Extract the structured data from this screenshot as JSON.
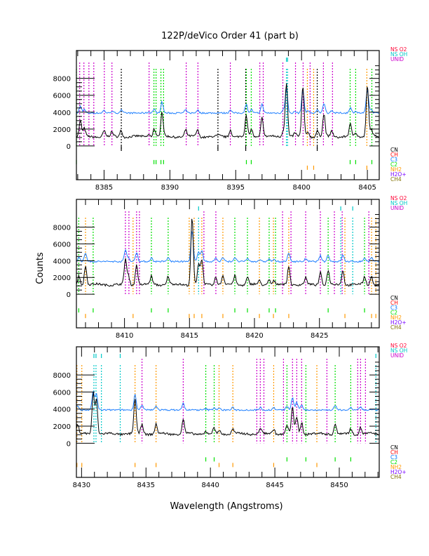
{
  "chart_data": {
    "type": "line",
    "title": "122P/deVico Order 41 (part b)",
    "xlabel": "Wavelength (Angstroms)",
    "ylabel": "Counts",
    "grid": false,
    "legend_top": [
      {
        "label": "NS O2",
        "color": "#ff0033"
      },
      {
        "label": "NS OH",
        "color": "#00c8c8"
      },
      {
        "label": "UNID",
        "color": "#cc00cc"
      }
    ],
    "legend_bottom": [
      {
        "label": "CN",
        "color": "#000000"
      },
      {
        "label": "CH",
        "color": "#ff0000"
      },
      {
        "label": "C3",
        "color": "#0078ff"
      },
      {
        "label": "C2",
        "color": "#00e000"
      },
      {
        "label": "NH2",
        "color": "#ff9900"
      },
      {
        "label": "H2O+",
        "color": "#7700ff"
      },
      {
        "label": "CH4",
        "color": "#807000"
      }
    ],
    "series_colors": {
      "spectrum": "#000000",
      "offset_spectrum": "#1e7fff"
    },
    "marker_colors": {
      "UNID": "#cc00cc",
      "C2": "#00e000",
      "NH2": "#ff9900",
      "CN": "#000000",
      "NS OH": "#00c8c8"
    },
    "panels": [
      {
        "xlim": [
          8382.9,
          8405.9
        ],
        "ylim": [
          -4000,
          11300
        ],
        "xticks": [
          8385,
          8390,
          8395,
          8400,
          8405
        ],
        "yticks": [
          0,
          2000,
          4000,
          6000,
          8000
        ],
        "baseline": 1100,
        "offset_baseline": 3900,
        "peaks": [
          [
            8383.2,
            2900
          ],
          [
            8383.5,
            2000
          ],
          [
            8385.0,
            1800
          ],
          [
            8385.6,
            1600
          ],
          [
            8386.3,
            1900
          ],
          [
            8388.4,
            1400
          ],
          [
            8388.8,
            2100
          ],
          [
            8389.4,
            4000
          ],
          [
            8391.2,
            1900
          ],
          [
            8392.1,
            1900
          ],
          [
            8393.7,
            1200
          ],
          [
            8394.6,
            2000
          ],
          [
            8395.8,
            3500
          ],
          [
            8396.2,
            2000
          ],
          [
            8397.0,
            3400
          ],
          [
            8398.6,
            1800
          ],
          [
            8398.85,
            7500
          ],
          [
            8399.5,
            1500
          ],
          [
            8400.1,
            7000
          ],
          [
            8400.5,
            1700
          ],
          [
            8401.2,
            1800
          ],
          [
            8401.7,
            3700
          ],
          [
            8402.3,
            1800
          ],
          [
            8403.7,
            2500
          ],
          [
            8404.1,
            1600
          ],
          [
            8405.0,
            7200
          ],
          [
            8405.3,
            2000
          ]
        ],
        "markers": [
          {
            "x": 8382.9,
            "species": "C2"
          },
          {
            "x": 8383.15,
            "species": "UNID"
          },
          {
            "x": 8383.47,
            "species": "UNID"
          },
          {
            "x": 8383.85,
            "species": "UNID"
          },
          {
            "x": 8384.22,
            "species": "UNID"
          },
          {
            "x": 8385.02,
            "species": "UNID"
          },
          {
            "x": 8385.6,
            "species": "UNID"
          },
          {
            "x": 8386.31,
            "species": "CN"
          },
          {
            "x": 8388.42,
            "species": "UNID"
          },
          {
            "x": 8388.79,
            "species": "C2"
          },
          {
            "x": 8388.95,
            "species": "C2"
          },
          {
            "x": 8389.32,
            "species": "C2"
          },
          {
            "x": 8389.52,
            "species": "C2"
          },
          {
            "x": 8391.24,
            "species": "UNID"
          },
          {
            "x": 8392.13,
            "species": "UNID"
          },
          {
            "x": 8393.65,
            "species": "CN"
          },
          {
            "x": 8394.59,
            "species": "UNID"
          },
          {
            "x": 8395.76,
            "species": "CN"
          },
          {
            "x": 8395.81,
            "species": "C2"
          },
          {
            "x": 8396.18,
            "species": "C2"
          },
          {
            "x": 8396.83,
            "species": "UNID"
          },
          {
            "x": 8397.09,
            "species": "UNID"
          },
          {
            "x": 8398.58,
            "species": "UNID"
          },
          {
            "x": 8398.85,
            "species": "NS OH"
          },
          {
            "x": 8398.94,
            "species": "NS OH"
          },
          {
            "x": 8399.54,
            "species": "UNID"
          },
          {
            "x": 8400.12,
            "species": "UNID"
          },
          {
            "x": 8400.44,
            "species": "NH2"
          },
          {
            "x": 8400.65,
            "species": "UNID"
          },
          {
            "x": 8400.92,
            "species": "NH2"
          },
          {
            "x": 8401.19,
            "species": "CN"
          },
          {
            "x": 8401.66,
            "species": "UNID"
          },
          {
            "x": 8402.35,
            "species": "UNID"
          },
          {
            "x": 8403.69,
            "species": "C2"
          },
          {
            "x": 8404.11,
            "species": "C2"
          },
          {
            "x": 8404.96,
            "species": "NH2"
          },
          {
            "x": 8405.34,
            "species": "C2"
          }
        ]
      },
      {
        "xlim": [
          8406.3,
          8429.6
        ],
        "ylim": [
          -4000,
          11300
        ],
        "xticks": [
          8410,
          8415,
          8420,
          8425
        ],
        "yticks": [
          0,
          2000,
          4000,
          6000,
          8000
        ],
        "baseline": 1150,
        "offset_baseline": 3900,
        "peaks": [
          [
            8406.5,
            2250
          ],
          [
            8407.0,
            3400
          ],
          [
            8410.07,
            4200
          ],
          [
            8410.3,
            2200
          ],
          [
            8410.93,
            3600
          ],
          [
            8412.07,
            2100
          ],
          [
            8413.36,
            2150
          ],
          [
            8415.2,
            9200
          ],
          [
            8415.7,
            3600
          ],
          [
            8415.95,
            4100
          ],
          [
            8417.03,
            2100
          ],
          [
            8417.57,
            2200
          ],
          [
            8418.49,
            2250
          ],
          [
            8419.46,
            2000
          ],
          [
            8420.38,
            1600
          ],
          [
            8421.13,
            1800
          ],
          [
            8421.5,
            1600
          ],
          [
            8422.64,
            3400
          ],
          [
            8423.94,
            1900
          ],
          [
            8425.07,
            2700
          ],
          [
            8425.67,
            2850
          ],
          [
            8426.8,
            2900
          ],
          [
            8428.47,
            2100
          ],
          [
            8429.0,
            2200
          ]
        ],
        "markers": [
          {
            "x": 8406.48,
            "species": "C2"
          },
          {
            "x": 8407.0,
            "species": "NH2"
          },
          {
            "x": 8407.59,
            "species": "C2"
          },
          {
            "x": 8410.07,
            "species": "UNID"
          },
          {
            "x": 8410.34,
            "species": "UNID"
          },
          {
            "x": 8410.66,
            "species": "NH2"
          },
          {
            "x": 8410.93,
            "species": "UNID"
          },
          {
            "x": 8411.15,
            "species": "UNID"
          },
          {
            "x": 8412.07,
            "species": "C2"
          },
          {
            "x": 8413.36,
            "species": "C2"
          },
          {
            "x": 8414.98,
            "species": "NH2"
          },
          {
            "x": 8415.36,
            "species": "NH2"
          },
          {
            "x": 8415.7,
            "species": "NS OH"
          },
          {
            "x": 8415.95,
            "species": "NH2"
          },
          {
            "x": 8416.11,
            "species": "UNID"
          },
          {
            "x": 8417.03,
            "species": "UNID"
          },
          {
            "x": 8417.57,
            "species": "NH2"
          },
          {
            "x": 8418.49,
            "species": "C2"
          },
          {
            "x": 8419.46,
            "species": "C2"
          },
          {
            "x": 8420.38,
            "species": "NH2"
          },
          {
            "x": 8421.13,
            "species": "C2"
          },
          {
            "x": 8421.46,
            "species": "NH2"
          },
          {
            "x": 8421.62,
            "species": "C2"
          },
          {
            "x": 8422.16,
            "species": "UNID"
          },
          {
            "x": 8422.64,
            "species": "NH2"
          },
          {
            "x": 8422.81,
            "species": "UNID"
          },
          {
            "x": 8423.94,
            "species": "UNID"
          },
          {
            "x": 8425.07,
            "species": "UNID"
          },
          {
            "x": 8425.67,
            "species": "C2"
          },
          {
            "x": 8426.15,
            "species": "UNID"
          },
          {
            "x": 8426.64,
            "species": "NS OH"
          },
          {
            "x": 8426.75,
            "species": "UNID"
          },
          {
            "x": 8426.96,
            "species": "NH2"
          },
          {
            "x": 8427.56,
            "species": "NS OH"
          },
          {
            "x": 8428.47,
            "species": "C2"
          },
          {
            "x": 8428.8,
            "species": "UNID"
          },
          {
            "x": 8429.01,
            "species": "NH2"
          },
          {
            "x": 8429.34,
            "species": "NH2"
          }
        ]
      },
      {
        "xlim": [
          8429.6,
          8453.1
        ],
        "ylim": [
          -4000,
          11300
        ],
        "xticks": [
          8430,
          8435,
          8440,
          8445,
          8450
        ],
        "yticks": [
          0,
          2000,
          4000,
          6000,
          8000
        ],
        "baseline": 1100,
        "offset_baseline": 3900,
        "peaks": [
          [
            8429.7,
            2200
          ],
          [
            8430.9,
            5900
          ],
          [
            8431.15,
            5200
          ],
          [
            8434.15,
            5200
          ],
          [
            8434.69,
            2300
          ],
          [
            8435.78,
            2200
          ],
          [
            8437.89,
            2800
          ],
          [
            8439.64,
            1400
          ],
          [
            8440.29,
            1700
          ],
          [
            8440.67,
            1500
          ],
          [
            8441.74,
            1700
          ],
          [
            8443.87,
            1800
          ],
          [
            8444.91,
            1700
          ],
          [
            8445.94,
            2100
          ],
          [
            8446.37,
            4300
          ],
          [
            8446.7,
            3000
          ],
          [
            8447.08,
            2500
          ],
          [
            8449.68,
            2300
          ],
          [
            8450.89,
            1700
          ],
          [
            8451.65,
            1900
          ]
        ],
        "markers": [
          {
            "x": 8429.64,
            "species": "NH2"
          },
          {
            "x": 8430.02,
            "species": "NH2"
          },
          {
            "x": 8430.96,
            "species": "NS OH"
          },
          {
            "x": 8431.12,
            "species": "NS OH"
          },
          {
            "x": 8431.54,
            "species": "NS OH"
          },
          {
            "x": 8433.0,
            "species": "NS OH"
          },
          {
            "x": 8434.15,
            "species": "NH2"
          },
          {
            "x": 8434.69,
            "species": "UNID"
          },
          {
            "x": 8435.78,
            "species": "NH2"
          },
          {
            "x": 8437.89,
            "species": "UNID"
          },
          {
            "x": 8439.64,
            "species": "C2"
          },
          {
            "x": 8440.29,
            "species": "C2"
          },
          {
            "x": 8440.67,
            "species": "NH2"
          },
          {
            "x": 8441.74,
            "species": "NH2"
          },
          {
            "x": 8443.6,
            "species": "UNID"
          },
          {
            "x": 8443.87,
            "species": "UNID"
          },
          {
            "x": 8444.15,
            "species": "UNID"
          },
          {
            "x": 8444.91,
            "species": "NH2"
          },
          {
            "x": 8445.67,
            "species": "UNID"
          },
          {
            "x": 8445.94,
            "species": "C2"
          },
          {
            "x": 8446.37,
            "species": "UNID"
          },
          {
            "x": 8446.7,
            "species": "UNID"
          },
          {
            "x": 8447.08,
            "species": "UNID"
          },
          {
            "x": 8447.41,
            "species": "C2"
          },
          {
            "x": 8448.26,
            "species": "NH2"
          },
          {
            "x": 8449.04,
            "species": "UNID"
          },
          {
            "x": 8449.68,
            "species": "C2"
          },
          {
            "x": 8450.89,
            "species": "C2"
          },
          {
            "x": 8451.43,
            "species": "UNID"
          },
          {
            "x": 8451.65,
            "species": "UNID"
          },
          {
            "x": 8452.03,
            "species": "UNID"
          },
          {
            "x": 8452.84,
            "species": "NS OH"
          }
        ]
      }
    ]
  }
}
